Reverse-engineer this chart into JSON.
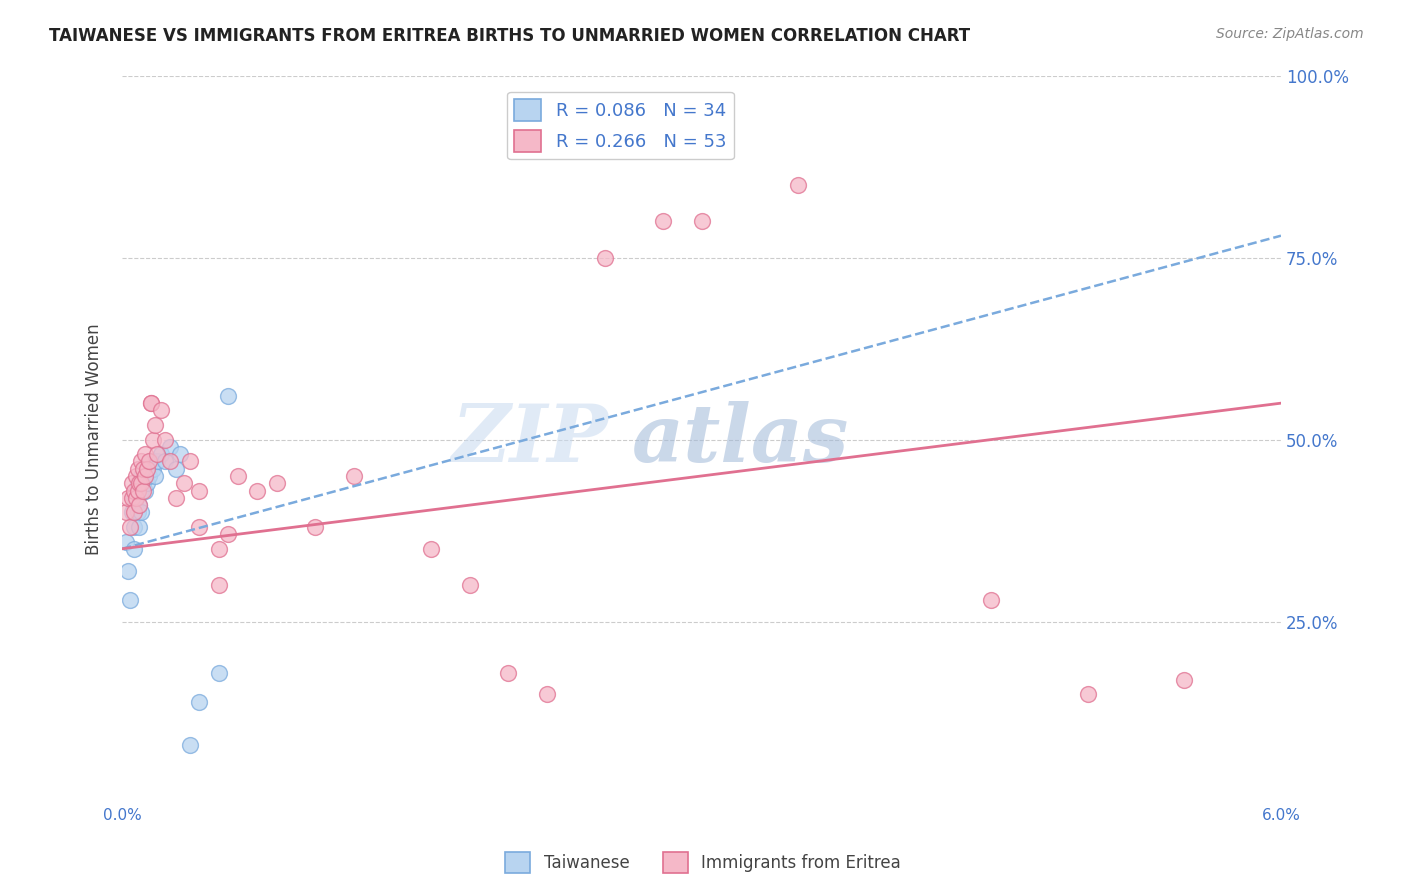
{
  "title": "TAIWANESE VS IMMIGRANTS FROM ERITREA BIRTHS TO UNMARRIED WOMEN CORRELATION CHART",
  "source": "Source: ZipAtlas.com",
  "ylabel": "Births to Unmarried Women",
  "xlim": [
    0.0,
    6.0
  ],
  "ylim": [
    0.0,
    100.0
  ],
  "yticks": [
    0,
    25,
    50,
    75,
    100
  ],
  "ytick_labels": [
    "",
    "25.0%",
    "50.0%",
    "75.0%",
    "100.0%"
  ],
  "background_color": "#ffffff",
  "watermark_line1": "ZIP",
  "watermark_line2": "atlas",
  "legend": {
    "taiwanese": {
      "R": 0.086,
      "N": 34
    },
    "eritrea": {
      "R": 0.266,
      "N": 53
    }
  },
  "taiwanese_fill": "#b8d4f0",
  "taiwanese_edge": "#7aaadd",
  "eritrea_fill": "#f5b8c8",
  "eritrea_edge": "#e07090",
  "trendline_tw_color": "#7aaadd",
  "trendline_er_color": "#e07090",
  "axis_color": "#4477cc",
  "grid_color": "#cccccc",
  "taiwanese_x": [
    0.02,
    0.03,
    0.04,
    0.05,
    0.06,
    0.06,
    0.06,
    0.07,
    0.07,
    0.08,
    0.08,
    0.09,
    0.09,
    0.1,
    0.1,
    0.1,
    0.11,
    0.12,
    0.12,
    0.13,
    0.14,
    0.15,
    0.16,
    0.17,
    0.18,
    0.2,
    0.22,
    0.25,
    0.28,
    0.3,
    0.35,
    0.4,
    0.5,
    0.55
  ],
  "taiwanese_y": [
    36,
    32,
    28,
    40,
    42,
    38,
    35,
    43,
    42,
    44,
    40,
    41,
    38,
    45,
    43,
    40,
    44,
    46,
    43,
    44,
    45,
    47,
    46,
    45,
    47,
    48,
    47,
    49,
    46,
    48,
    8,
    14,
    18,
    56
  ],
  "eritrea_x": [
    0.02,
    0.03,
    0.04,
    0.05,
    0.05,
    0.06,
    0.06,
    0.07,
    0.07,
    0.08,
    0.08,
    0.09,
    0.09,
    0.1,
    0.1,
    0.11,
    0.11,
    0.12,
    0.12,
    0.13,
    0.14,
    0.15,
    0.15,
    0.16,
    0.17,
    0.18,
    0.2,
    0.22,
    0.25,
    0.28,
    0.32,
    0.35,
    0.4,
    0.4,
    0.5,
    0.5,
    0.55,
    0.6,
    0.7,
    0.8,
    1.0,
    1.2,
    1.6,
    1.8,
    2.0,
    2.2,
    2.5,
    2.8,
    3.0,
    3.5,
    4.5,
    5.0,
    5.5
  ],
  "eritrea_y": [
    40,
    42,
    38,
    44,
    42,
    43,
    40,
    45,
    42,
    46,
    43,
    44,
    41,
    47,
    44,
    46,
    43,
    48,
    45,
    46,
    47,
    55,
    55,
    50,
    52,
    48,
    54,
    50,
    47,
    42,
    44,
    47,
    38,
    43,
    30,
    35,
    37,
    45,
    43,
    44,
    38,
    45,
    35,
    30,
    18,
    15,
    75,
    80,
    80,
    85,
    28,
    15,
    17
  ],
  "trendline_tw_x0": 0.0,
  "trendline_tw_x1": 6.0,
  "trendline_tw_y0": 35.0,
  "trendline_tw_y1": 78.0,
  "trendline_er_x0": 0.0,
  "trendline_er_x1": 6.0,
  "trendline_er_y0": 35.0,
  "trendline_er_y1": 55.0
}
